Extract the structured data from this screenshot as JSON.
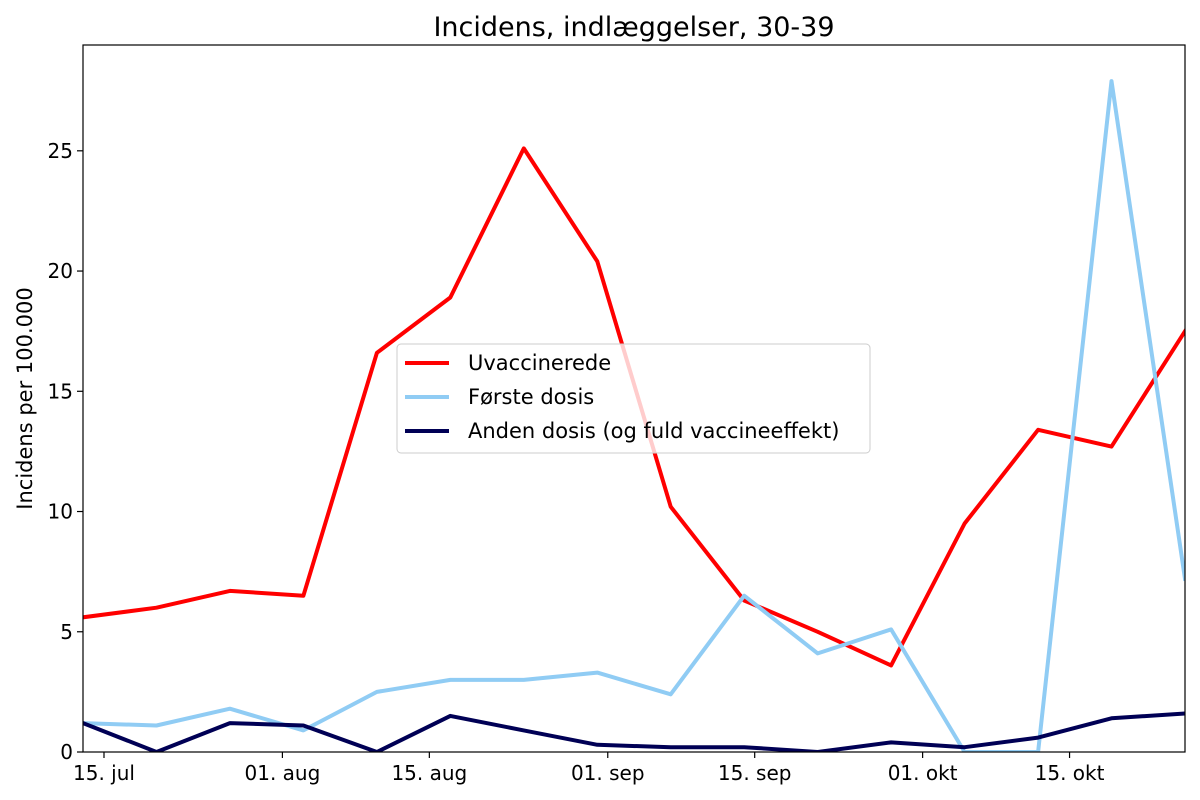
{
  "chart_data": {
    "type": "line",
    "title": "Incidens, indlæggelser, 30-39",
    "xlabel": "",
    "ylabel": "Incidens per 100.000",
    "x": [
      "2021-07-13",
      "2021-07-20",
      "2021-07-27",
      "2021-08-03",
      "2021-08-10",
      "2021-08-17",
      "2021-08-24",
      "2021-08-31",
      "2021-09-07",
      "2021-09-14",
      "2021-09-21",
      "2021-09-28",
      "2021-10-05",
      "2021-10-12",
      "2021-10-19",
      "2021-10-26"
    ],
    "xlim": [
      "2021-07-13",
      "2021-10-26"
    ],
    "ylim": [
      0,
      29.4
    ],
    "yticks": [
      0,
      5,
      10,
      15,
      20,
      25
    ],
    "xticks": [
      {
        "date": "2021-07-15",
        "label": "15. jul"
      },
      {
        "date": "2021-08-01",
        "label": "01. aug"
      },
      {
        "date": "2021-08-15",
        "label": "15. aug"
      },
      {
        "date": "2021-09-01",
        "label": "01. sep"
      },
      {
        "date": "2021-09-15",
        "label": "15. sep"
      },
      {
        "date": "2021-10-01",
        "label": "01. okt"
      },
      {
        "date": "2021-10-15",
        "label": "15. okt"
      }
    ],
    "grid": false,
    "legend_position": "center",
    "series": [
      {
        "name": "Uvaccinerede",
        "color": "#ff0000",
        "values": [
          5.6,
          6.0,
          6.7,
          6.5,
          16.6,
          18.9,
          25.1,
          20.4,
          10.2,
          6.3,
          5.0,
          3.6,
          9.5,
          13.4,
          12.7,
          17.5
        ]
      },
      {
        "name": "Første dosis",
        "color": "#90ccf4",
        "values": [
          1.2,
          1.1,
          1.8,
          0.9,
          2.5,
          3.0,
          3.0,
          3.3,
          2.4,
          6.5,
          4.1,
          5.1,
          0.0,
          0.0,
          27.9,
          7.2
        ]
      },
      {
        "name": "Anden dosis (og fuld vaccineeffekt)",
        "color": "#000055",
        "values": [
          1.2,
          0.0,
          1.2,
          1.1,
          0.0,
          1.5,
          0.9,
          0.3,
          0.2,
          0.2,
          0.0,
          0.4,
          0.2,
          0.6,
          1.4,
          1.6
        ]
      }
    ]
  }
}
